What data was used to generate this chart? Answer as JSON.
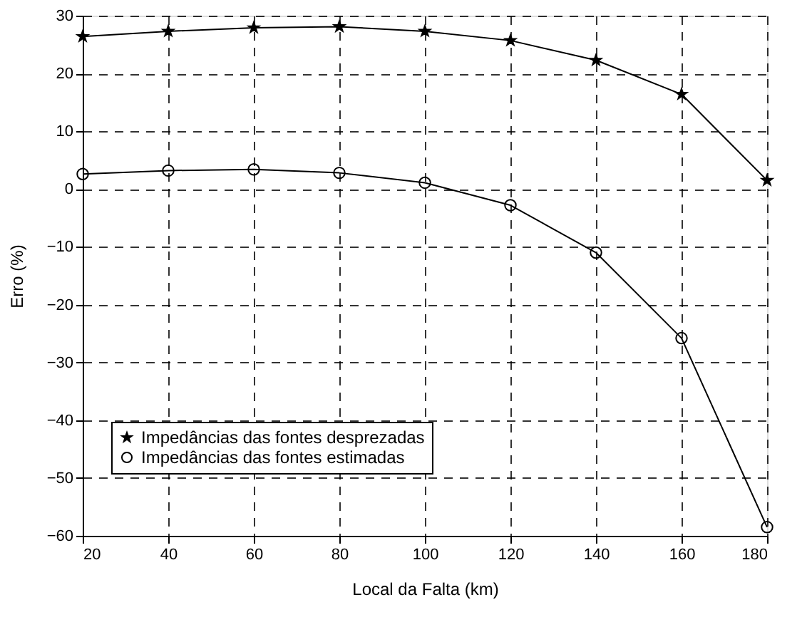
{
  "chart_data": {
    "type": "line",
    "xlabel": "Local da Falta (km)",
    "ylabel": "Erro (%)",
    "x": [
      20,
      40,
      60,
      80,
      100,
      120,
      140,
      160,
      180
    ],
    "series": [
      {
        "name": "Impedâncias das fontes desprezadas",
        "color": "#000000",
        "marker": "star",
        "values": [
          26.4,
          27.3,
          27.9,
          28.1,
          27.3,
          25.7,
          22.3,
          16.4,
          1.5
        ]
      },
      {
        "name": "Impedâncias das fontes estimadas",
        "color": "#000000",
        "marker": "circle",
        "values": [
          2.6,
          3.2,
          3.4,
          2.8,
          1.1,
          -2.8,
          -11,
          -25.8,
          -58.5
        ]
      }
    ],
    "xlim": [
      20,
      180
    ],
    "xticks": [
      20,
      40,
      60,
      80,
      100,
      120,
      140,
      160,
      180
    ],
    "ylim": [
      -60,
      30
    ],
    "yticks": [
      -60,
      -50,
      -40,
      -30,
      -20,
      -10,
      0,
      10,
      20,
      30
    ],
    "grid": true,
    "legend": "bottom left",
    "line_style": "solid"
  }
}
